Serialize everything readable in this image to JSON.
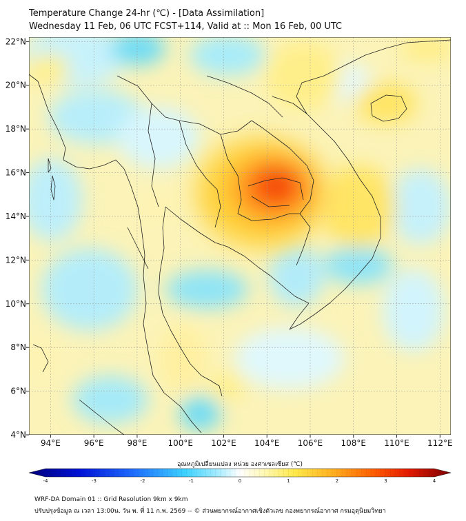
{
  "title": {
    "line1": "Temperature Change 24-hr (℃) - [Data Assimilation]",
    "line2": "Wednesday 11 Feb, 06 UTC FCST+114, Valid at :: Mon 16 Feb, 00 UTC"
  },
  "map": {
    "lon_range": [
      93,
      112.5
    ],
    "lat_range": [
      4,
      22.2
    ],
    "lon_ticks": [
      {
        "value": 94,
        "label": "94°E"
      },
      {
        "value": 96,
        "label": "96°E"
      },
      {
        "value": 98,
        "label": "98°E"
      },
      {
        "value": 100,
        "label": "100°E"
      },
      {
        "value": 102,
        "label": "102°E"
      },
      {
        "value": 104,
        "label": "104°E"
      },
      {
        "value": 106,
        "label": "106°E"
      },
      {
        "value": 108,
        "label": "108°E"
      },
      {
        "value": 110,
        "label": "110°E"
      },
      {
        "value": 112,
        "label": "112°E"
      }
    ],
    "lat_ticks": [
      {
        "value": 22,
        "label": "22°N"
      },
      {
        "value": 20,
        "label": "20°N"
      },
      {
        "value": 18,
        "label": "18°N"
      },
      {
        "value": 16,
        "label": "16°N"
      },
      {
        "value": 14,
        "label": "14°N"
      },
      {
        "value": 12,
        "label": "12°N"
      },
      {
        "value": 10,
        "label": "10°N"
      },
      {
        "value": 8,
        "label": "8°N"
      },
      {
        "value": 6,
        "label": "6°N"
      },
      {
        "value": 4,
        "label": "4°N"
      }
    ]
  },
  "colorbar": {
    "title": "อุณหภูมิเปลี่ยนแปลง หน่วย องศาเซลเซียส (℃)",
    "min": -4,
    "max": 4,
    "ticks": [
      {
        "value": -4,
        "label": "-4"
      },
      {
        "value": -3,
        "label": "-3"
      },
      {
        "value": -2,
        "label": "-2"
      },
      {
        "value": -1,
        "label": "-1"
      },
      {
        "value": 0,
        "label": "0"
      },
      {
        "value": 1,
        "label": "1"
      },
      {
        "value": 2,
        "label": "2"
      },
      {
        "value": 3,
        "label": "3"
      },
      {
        "value": 4,
        "label": "4"
      }
    ]
  },
  "footer": {
    "line1": "WRF-DA Domain 01 :: Grid Resolution 9km x 9km",
    "line2": "ปรับปรุงข้อมูล ณ เวลา 13:00น. วัน พ. ที่ 11 ก.พ. 2569 -- © ส่วนพยากรณ์อากาศเชิงตัวเลข กองพยากรณ์อากาศ กรมอุตุนิยมวิทยา"
  }
}
